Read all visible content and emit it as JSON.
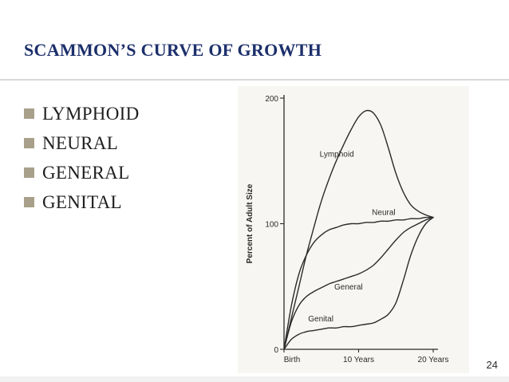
{
  "slide": {
    "title": "SCAMMON’S CURVE OF GROWTH",
    "bullets": [
      "LYMPHOID",
      "NEURAL",
      "GENERAL",
      "GENITAL"
    ],
    "page_number": "24",
    "colors": {
      "title": "#1c2f6b",
      "bullet_marker": "#a9a08b"
    }
  },
  "chart_data": {
    "type": "line",
    "title": "",
    "xlabel": "",
    "ylabel": "Percent of Adult Size",
    "xlim": [
      0,
      20
    ],
    "ylim": [
      0,
      200
    ],
    "x_ticks": [
      {
        "value": 0,
        "label": "Birth"
      },
      {
        "value": 10,
        "label": "10 Years"
      },
      {
        "value": 20,
        "label": "20 Years"
      }
    ],
    "y_ticks": [
      {
        "value": 0,
        "label": "0"
      },
      {
        "value": 100,
        "label": "100"
      },
      {
        "value": 200,
        "label": "200"
      }
    ],
    "grid": false,
    "legend": "none",
    "series": [
      {
        "name": "Lymphoid",
        "x": [
          0,
          1,
          2,
          3,
          4,
          5,
          6,
          7,
          8,
          9,
          10,
          11,
          12,
          13,
          14,
          15,
          16,
          17,
          18,
          19,
          20
        ],
        "values": [
          0,
          25,
          50,
          75,
          97,
          118,
          135,
          150,
          163,
          175,
          185,
          190,
          188,
          178,
          160,
          140,
          125,
          115,
          110,
          107,
          105
        ],
        "label_at_x": 9
      },
      {
        "name": "Neural",
        "x": [
          0,
          1,
          2,
          3,
          4,
          5,
          6,
          7,
          8,
          9,
          10,
          11,
          12,
          13,
          14,
          15,
          16,
          17,
          18,
          19,
          20
        ],
        "values": [
          0,
          35,
          60,
          75,
          85,
          91,
          95,
          97,
          99,
          100,
          100,
          101,
          101,
          102,
          102,
          103,
          103,
          104,
          104,
          105,
          105
        ],
        "label_at_x": 14
      },
      {
        "name": "General",
        "x": [
          0,
          1,
          2,
          3,
          4,
          5,
          6,
          7,
          8,
          9,
          10,
          11,
          12,
          13,
          14,
          15,
          16,
          17,
          18,
          19,
          20
        ],
        "values": [
          0,
          22,
          35,
          42,
          46,
          49,
          52,
          54,
          56,
          58,
          60,
          63,
          67,
          73,
          80,
          87,
          93,
          97,
          100,
          103,
          105
        ],
        "label_at_x": 9.5
      },
      {
        "name": "Genital",
        "x": [
          0,
          1,
          2,
          3,
          4,
          5,
          6,
          7,
          8,
          9,
          10,
          11,
          12,
          13,
          14,
          15,
          16,
          17,
          18,
          19,
          20
        ],
        "values": [
          0,
          8,
          12,
          14,
          15,
          16,
          17,
          17,
          18,
          18,
          19,
          20,
          21,
          24,
          28,
          37,
          55,
          75,
          90,
          100,
          105
        ],
        "label_at_x": 6
      }
    ]
  }
}
